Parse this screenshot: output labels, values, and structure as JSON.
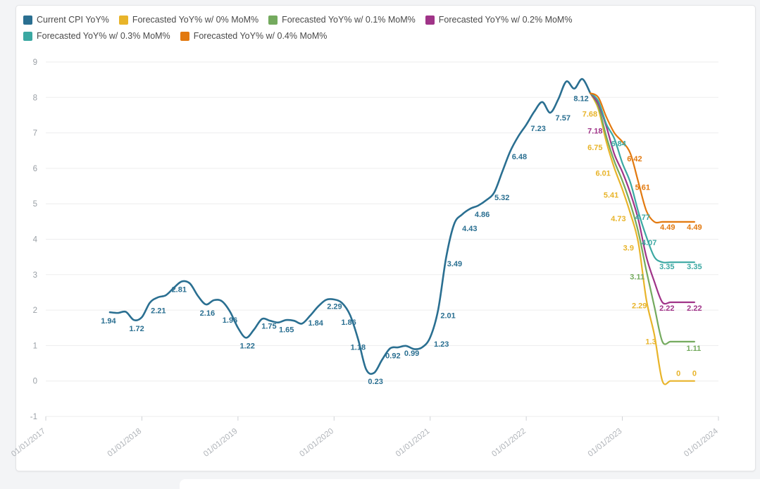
{
  "page": {
    "background": "#f3f4f6",
    "card_background": "#ffffff",
    "card_border": "#e3e4e6"
  },
  "legend": {
    "items": [
      {
        "label": "Current CPI YoY%",
        "color": "#2a6f91"
      },
      {
        "label": "Forecasted YoY% w/ 0% MoM%",
        "color": "#e8b42a"
      },
      {
        "label": "Forecasted YoY% w/ 0.1% MoM%",
        "color": "#74aa5e"
      },
      {
        "label": "Forecasted YoY% w/ 0.2% MoM%",
        "color": "#a03488"
      },
      {
        "label": "Forecasted YoY% w/ 0.3% MoM%",
        "color": "#3ba8a2"
      },
      {
        "label": "Forecasted YoY% w/ 0.4% MoM%",
        "color": "#e2790f"
      }
    ]
  },
  "chart_data": {
    "type": "line",
    "title": "",
    "grid": true,
    "legend_position": "top-left",
    "y_axis": {
      "min": -1,
      "max": 9,
      "ticks": [
        9,
        8,
        7,
        6,
        5,
        4,
        3,
        2,
        1,
        0,
        -1
      ]
    },
    "x_axis": {
      "tick_labels": [
        "01/01/2017",
        "01/01/2018",
        "01/01/2019",
        "01/01/2020",
        "01/01/2021",
        "01/01/2022",
        "01/01/2023",
        "01/01/2024"
      ],
      "months_total": 84,
      "months_per_tick": 12
    },
    "series": [
      {
        "name": "Current CPI YoY%",
        "color": "#2a6f91",
        "start_month": 8,
        "values": [
          1.94,
          1.92,
          1.95,
          1.72,
          1.8,
          2.21,
          2.36,
          2.42,
          2.63,
          2.81,
          2.75,
          2.4,
          2.16,
          2.28,
          2.25,
          1.96,
          1.5,
          1.22,
          1.45,
          1.75,
          1.7,
          1.65,
          1.72,
          1.7,
          1.62,
          1.84,
          2.1,
          2.29,
          2.3,
          2.2,
          1.86,
          1.18,
          0.33,
          0.23,
          0.6,
          0.92,
          0.95,
          0.99,
          0.9,
          0.95,
          1.23,
          2.01,
          3.49,
          4.43,
          4.7,
          4.86,
          4.95,
          5.1,
          5.32,
          5.9,
          6.48,
          6.9,
          7.23,
          7.6,
          7.87,
          7.57,
          7.95,
          8.45,
          8.25,
          8.52,
          8.12
        ],
        "labels": [
          {
            "m": 8,
            "t": "1.94",
            "dx": -2,
            "dy": 16
          },
          {
            "m": 11,
            "t": "1.72",
            "dx": 4,
            "dy": 16
          },
          {
            "m": 13,
            "t": "2.21",
            "dx": 12,
            "dy": 15
          },
          {
            "m": 17,
            "t": "2.81",
            "dx": -4,
            "dy": 15
          },
          {
            "m": 20,
            "t": "2.16",
            "dx": 2,
            "dy": 16
          },
          {
            "m": 23,
            "t": "1.96",
            "dx": 0,
            "dy": 16
          },
          {
            "m": 25,
            "t": "1.22",
            "dx": 2,
            "dy": 15
          },
          {
            "m": 27,
            "t": "1.75",
            "dx": 10,
            "dy": 14
          },
          {
            "m": 29,
            "t": "1.65",
            "dx": 12,
            "dy": 14
          },
          {
            "m": 33,
            "t": "1.84",
            "dx": 8,
            "dy": 14
          },
          {
            "m": 35,
            "t": "2.29",
            "dx": 12,
            "dy": 13
          },
          {
            "m": 38,
            "t": "1.86",
            "dx": -2,
            "dy": 14
          },
          {
            "m": 39,
            "t": "1.18",
            "dx": 0,
            "dy": 15
          },
          {
            "m": 41,
            "t": "0.23",
            "dx": 2,
            "dy": 16
          },
          {
            "m": 43,
            "t": "0.92",
            "dx": 4,
            "dy": 14
          },
          {
            "m": 45,
            "t": "0.99",
            "dx": 8,
            "dy": 14
          },
          {
            "m": 48,
            "t": "1.23",
            "dx": 16,
            "dy": 13
          },
          {
            "m": 49,
            "t": "2.01",
            "dx": 14,
            "dy": 12
          },
          {
            "m": 50,
            "t": "3.49",
            "dx": 12,
            "dy": 13
          },
          {
            "m": 51,
            "t": "4.43",
            "dx": 22,
            "dy": 10
          },
          {
            "m": 53,
            "t": "4.86",
            "dx": 17,
            "dy": 12
          },
          {
            "m": 56,
            "t": "5.32",
            "dx": 11,
            "dy": 11
          },
          {
            "m": 58,
            "t": "6.48",
            "dx": 13,
            "dy": 11
          },
          {
            "m": 60,
            "t": "7.23",
            "dx": 17,
            "dy": 9
          },
          {
            "m": 63,
            "t": "7.57",
            "dx": 18,
            "dy": 11
          },
          {
            "m": 68,
            "t": "8.12",
            "dx": -13,
            "dy": 11
          }
        ]
      },
      {
        "name": "Forecasted YoY% w/ 0% MoM%",
        "color": "#e8b42a",
        "start_month": 68,
        "values": [
          8.12,
          7.68,
          6.75,
          6.01,
          5.41,
          4.73,
          3.9,
          2.29,
          1.3,
          0.0,
          0.0,
          0.0,
          0.0,
          0.0
        ],
        "labels": [
          {
            "m": 69,
            "t": "7.68",
            "dx": -12,
            "dy": 11
          },
          {
            "m": 70,
            "t": "6.75",
            "dx": -16,
            "dy": 12
          },
          {
            "m": 71,
            "t": "6.01",
            "dx": -16,
            "dy": 11
          },
          {
            "m": 72,
            "t": "5.41",
            "dx": -16,
            "dy": 12
          },
          {
            "m": 73,
            "t": "4.73",
            "dx": -17,
            "dy": 11
          },
          {
            "m": 74,
            "t": "3.9",
            "dx": -14,
            "dy": 11
          },
          {
            "m": 75,
            "t": "2.29",
            "dx": -10,
            "dy": 12
          },
          {
            "m": 76,
            "t": "1.3",
            "dx": -5,
            "dy": 13
          },
          {
            "m": 79,
            "t": "0",
            "dx": 0,
            "dy": -7
          },
          {
            "m": 81,
            "t": "0",
            "dx": 0,
            "dy": -7
          }
        ]
      },
      {
        "name": "Forecasted YoY% w/ 0.1% MoM%",
        "color": "#74aa5e",
        "start_month": 68,
        "values": [
          8.12,
          7.75,
          6.9,
          6.2,
          5.65,
          5.0,
          4.2,
          3.11,
          2.1,
          1.11,
          1.11,
          1.11,
          1.11,
          1.11
        ],
        "labels": [
          {
            "m": 75,
            "t": "3.11",
            "dx": -13,
            "dy": 12
          },
          {
            "m": 81,
            "t": "1.11",
            "dx": -1,
            "dy": 13
          }
        ]
      },
      {
        "name": "Forecasted YoY% w/ 0.2% MoM%",
        "color": "#a03488",
        "start_month": 68,
        "values": [
          8.12,
          7.82,
          7.18,
          6.4,
          5.9,
          5.3,
          4.55,
          3.5,
          2.8,
          2.22,
          2.22,
          2.22,
          2.22,
          2.22
        ],
        "labels": [
          {
            "m": 70,
            "t": "7.18",
            "dx": -16,
            "dy": 10
          },
          {
            "m": 78,
            "t": "2.22",
            "dx": -5,
            "dy": 12
          },
          {
            "m": 81,
            "t": "2.22",
            "dx": 0,
            "dy": 12
          }
        ]
      },
      {
        "name": "Forecasted YoY% w/ 0.3% MoM%",
        "color": "#3ba8a2",
        "start_month": 68,
        "values": [
          8.12,
          7.9,
          7.25,
          6.84,
          6.15,
          5.6,
          4.77,
          4.07,
          3.5,
          3.35,
          3.35,
          3.35,
          3.35,
          3.35
        ],
        "labels": [
          {
            "m": 71,
            "t": "6.84",
            "dx": 6,
            "dy": 11
          },
          {
            "m": 74,
            "t": "4.77",
            "dx": 6,
            "dy": 11
          },
          {
            "m": 75,
            "t": "4.07",
            "dx": 4,
            "dy": 12
          },
          {
            "m": 78,
            "t": "3.35",
            "dx": -5,
            "dy": 10
          },
          {
            "m": 81,
            "t": "3.35",
            "dx": 0,
            "dy": 10
          }
        ]
      },
      {
        "name": "Forecasted YoY% w/ 0.4% MoM%",
        "color": "#e2790f",
        "start_month": 68,
        "values": [
          8.12,
          8.0,
          7.45,
          7.0,
          6.75,
          6.42,
          5.61,
          4.8,
          4.49,
          4.49,
          4.49,
          4.49,
          4.49,
          4.49
        ],
        "labels": [
          {
            "m": 73,
            "t": "6.42",
            "dx": 6,
            "dy": 11
          },
          {
            "m": 74,
            "t": "5.61",
            "dx": 6,
            "dy": 11
          },
          {
            "m": 78,
            "t": "4.49",
            "dx": -4,
            "dy": 11
          },
          {
            "m": 81,
            "t": "4.49",
            "dx": 0,
            "dy": 11
          }
        ]
      }
    ]
  }
}
